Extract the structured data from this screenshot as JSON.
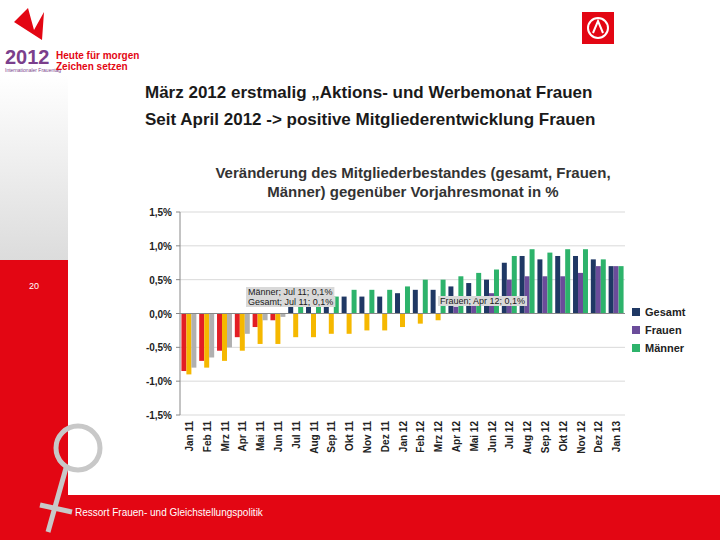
{
  "slide": {
    "logo_year": "2012",
    "logo_subline": "Internationaler Frauentag",
    "logo_text": [
      "Heute für morgen",
      "Zeichen setzen"
    ],
    "headline": [
      "März 2012 erstmalig „Aktions- und Werbemonat Frauen",
      "Seit April 2012 -> positive Mitgliederentwicklung Frauen"
    ],
    "page_number": "20",
    "footer": "Ressort Frauen- und Gleichstellungspolitik"
  },
  "chart_data": {
    "type": "bar",
    "title": "Veränderung des Mitgliederbestandes (gesamt, Frauen, Männer) gegenüber Vorjahresmonat in %",
    "categories": [
      "Jan 11",
      "Feb 11",
      "Mrz 11",
      "Apr 11",
      "Mai 11",
      "Jun 11",
      "Jul 11",
      "Aug 11",
      "Sep 11",
      "Okt 11",
      "Nov 11",
      "Dez 11",
      "Jan 12",
      "Feb 12",
      "Mrz 12",
      "Apr 12",
      "Mai 12",
      "Jun 12",
      "Jul 12",
      "Aug 12",
      "Sep 12",
      "Okt 12",
      "Nov 12",
      "Dez 12",
      "Jan 13"
    ],
    "series": [
      {
        "name": "Gesamt",
        "color": "#1f3864",
        "values": [
          -0.85,
          -0.7,
          -0.55,
          -0.35,
          -0.2,
          -0.1,
          0.1,
          0.15,
          0.2,
          0.25,
          0.25,
          0.25,
          0.3,
          0.35,
          0.35,
          0.4,
          0.45,
          0.5,
          0.75,
          0.85,
          0.8,
          0.85,
          0.85,
          0.8,
          0.7
        ],
        "colors": [
          "#e31e24",
          "#e31e24",
          "#e31e24",
          "#e31e24",
          "#e31e24",
          "#e31e24",
          "#1f3864",
          "#1f3864",
          "#1f3864",
          "#1f3864",
          "#1f3864",
          "#1f3864",
          "#1f3864",
          "#1f3864",
          "#1f3864",
          "#1f3864",
          "#1f3864",
          "#1f3864",
          "#1f3864",
          "#1f3864",
          "#1f3864",
          "#1f3864",
          "#1f3864",
          "#1f3864",
          "#1f3864"
        ]
      },
      {
        "name": "Frauen",
        "color": "#6b4c9a",
        "values": [
          -0.9,
          -0.8,
          -0.7,
          -0.55,
          -0.45,
          -0.45,
          -0.35,
          -0.35,
          -0.3,
          -0.3,
          -0.25,
          -0.25,
          -0.2,
          -0.15,
          -0.1,
          0.1,
          0.2,
          0.3,
          0.5,
          0.55,
          0.55,
          0.55,
          0.6,
          0.7,
          0.7
        ],
        "colors": [
          "#f5b800",
          "#f5b800",
          "#f5b800",
          "#f5b800",
          "#f5b800",
          "#f5b800",
          "#f5b800",
          "#f5b800",
          "#f5b800",
          "#f5b800",
          "#f5b800",
          "#f5b800",
          "#f5b800",
          "#f5b800",
          "#f5b800",
          "#6b4c9a",
          "#6b4c9a",
          "#6b4c9a",
          "#6b4c9a",
          "#6b4c9a",
          "#6b4c9a",
          "#6b4c9a",
          "#6b4c9a",
          "#6b4c9a",
          "#6b4c9a"
        ]
      },
      {
        "name": "Männer",
        "color": "#2db36b",
        "values": [
          -0.8,
          -0.65,
          -0.5,
          -0.3,
          -0.1,
          -0.05,
          0.1,
          0.2,
          0.25,
          0.35,
          0.35,
          0.35,
          0.4,
          0.5,
          0.5,
          0.55,
          0.6,
          0.65,
          0.85,
          0.95,
          0.9,
          0.95,
          0.95,
          0.8,
          0.7
        ],
        "colors": [
          "#b0b0b0",
          "#b0b0b0",
          "#b0b0b0",
          "#b0b0b0",
          "#b0b0b0",
          "#b0b0b0",
          "#2db36b",
          "#2db36b",
          "#2db36b",
          "#2db36b",
          "#2db36b",
          "#2db36b",
          "#2db36b",
          "#2db36b",
          "#2db36b",
          "#2db36b",
          "#2db36b",
          "#2db36b",
          "#2db36b",
          "#2db36b",
          "#2db36b",
          "#2db36b",
          "#2db36b",
          "#2db36b",
          "#2db36b"
        ]
      }
    ],
    "annotations": [
      "Männer; Jul 11; 0,1%",
      "Gesamt; Jul 11; 0,1%",
      "Frauen; Apr 12; 0,1%"
    ],
    "ylim": [
      -1.5,
      1.5
    ],
    "yticks": [
      {
        "value": -1.5,
        "label": "-1,5%"
      },
      {
        "value": -1.0,
        "label": "-1,0%"
      },
      {
        "value": -0.5,
        "label": "-0,5%"
      },
      {
        "value": 0,
        "label": "0,0%"
      },
      {
        "value": 0.5,
        "label": "0,5%"
      },
      {
        "value": 1.0,
        "label": "1,0%"
      },
      {
        "value": 1.5,
        "label": "1,5%"
      }
    ],
    "grid": true,
    "legend": "right"
  }
}
